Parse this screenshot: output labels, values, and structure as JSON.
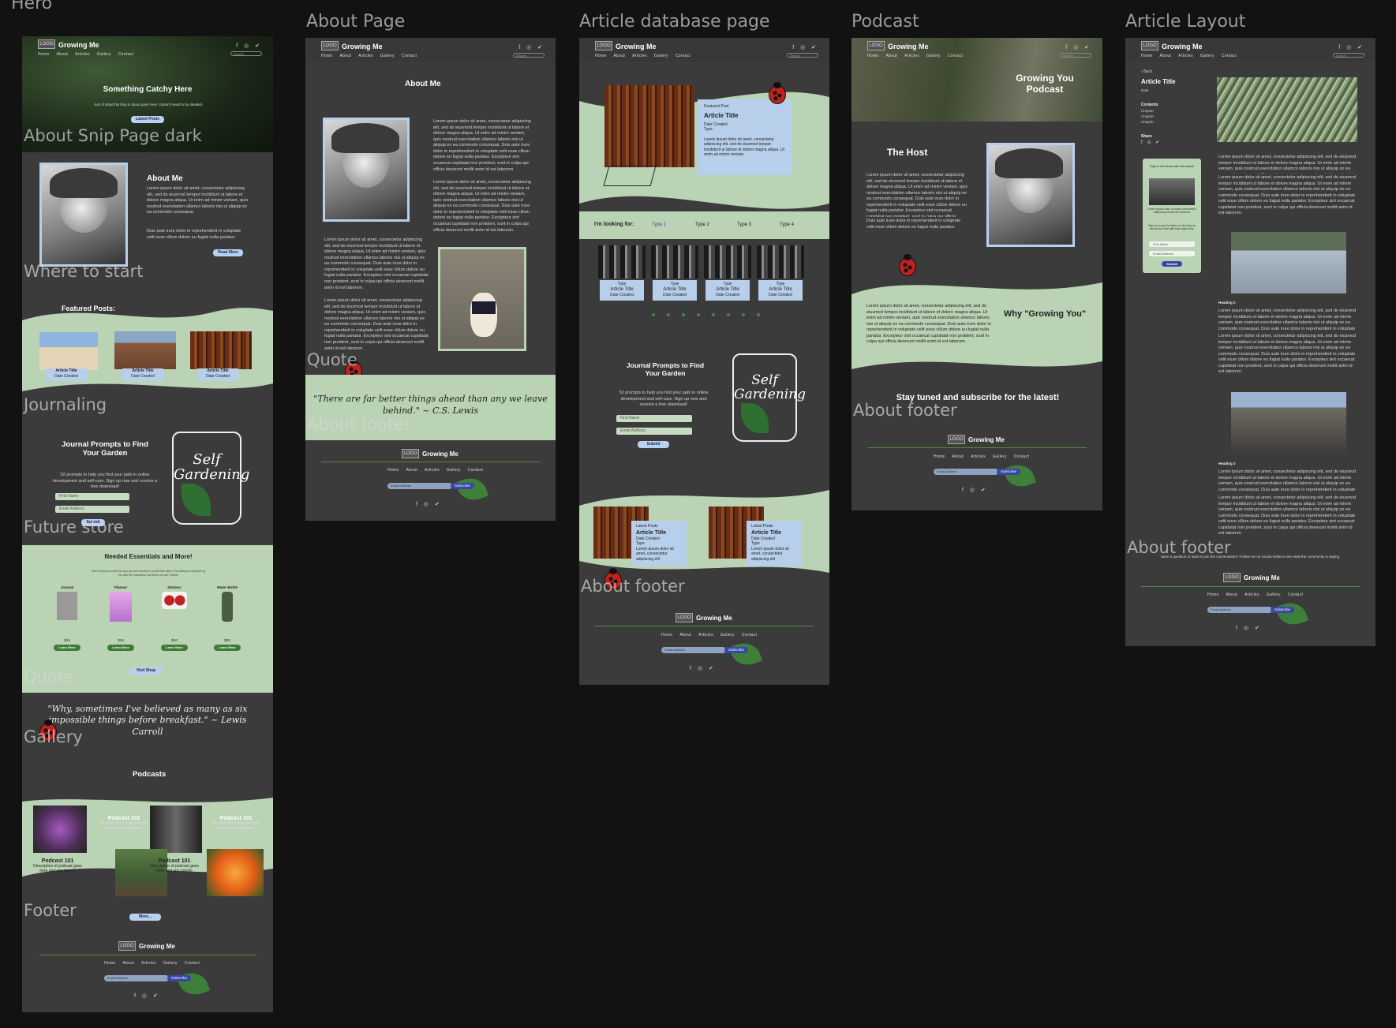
{
  "frames": {
    "hero": "Hero",
    "about": "About Page",
    "article_db": "Article database page",
    "podcast": "Podcast",
    "article_layout": "Article Layout"
  },
  "site": {
    "logo": "LOGO",
    "brand": "Growing Me",
    "nav": [
      "Home",
      "About",
      "Articles",
      "Gallery",
      "Contact"
    ],
    "social": "f ◎ ✔",
    "search": "Search"
  },
  "sections": {
    "about_snip": "About Snip Page dark",
    "where_start": "Where to start",
    "journaling": "Journaling",
    "future_store": "Future store",
    "quote": "Quote",
    "gallery": "Gallery",
    "footer": "Footer",
    "about_footer": "About footer"
  },
  "hero": {
    "title": "Something Catchy Here",
    "subtitle": "Just of what this blog is about goes here. Doesn't need to by detailed.",
    "button": "Latest Posts"
  },
  "about_me": {
    "title": "About Me",
    "text1": "Lorem ipsum dolor sit amet, consectetur adipiscing elit, sed do eiusmod tempor incididunt ut labore et dolore magna aliqua. Ut enim ad minim veniam, quis nostrud exercitation ullamco laboris nisi ut aliquip ex ea commodo consequat.",
    "text2": "Duis aute irure dolor in reprehenderit in voluptate velit esse cillum dolore eu fugiat nulla pariatur.",
    "button": "Read More"
  },
  "featured": {
    "title": "Featured Posts:",
    "cards": [
      {
        "title": "Article Title",
        "meta": "Date Created"
      },
      {
        "title": "Article Title",
        "meta": "Date Created"
      },
      {
        "title": "Article Title",
        "meta": "Date Created"
      }
    ]
  },
  "journal": {
    "title": "Journal Prompts to Find Your Garden",
    "text": "52 prompts to help you find your path in online development and self-care. Sign up now and receive a free download!",
    "first_name": "First Name",
    "email": "Email Address",
    "button": "Submit",
    "jar": "Self Gardening"
  },
  "store": {
    "title": "Needed Essentials and More!",
    "subtitle": "Here's what you need for your growth-needed in my life-Mini intern. Everything is designed by me with the inspiration that there you are. Heard!",
    "products": [
      {
        "name": "Journal",
        "price": "$15",
        "button": "Learn More"
      },
      {
        "name": "Planner",
        "price": "$15",
        "button": "Learn More"
      },
      {
        "name": "Stickers",
        "price": "$10",
        "button": "Learn More"
      },
      {
        "name": "Water Bottle",
        "price": "$20",
        "button": "Learn More"
      }
    ],
    "shop": "Visit Shop"
  },
  "quote1": {
    "text": "\"Why, sometimes I've believed as many as six impossible things before breakfast.\" ~ Lewis Carroll"
  },
  "podcasts": {
    "title": "Podcasts",
    "items": [
      {
        "title": "Podcast 101",
        "desc": "Description of podcast goes here and any guests"
      },
      {
        "title": "Podcast 101",
        "desc": "Description of podcast goes here and any guests"
      },
      {
        "title": "Podcast 101",
        "desc": "Description of podcast goes here and any guests"
      },
      {
        "title": "Podcast 101",
        "desc": "Description of podcast goes here and any guests"
      }
    ],
    "more": "More..."
  },
  "footer": {
    "email": "Email Address",
    "subscribe": "Subscribe"
  },
  "about_page": {
    "title": "About Me",
    "lorem": "Lorem ipsum dolor sit amet, consectetur adipiscing elit, sed do eiusmod tempor incididunt ut labore et dolore magna aliqua. Ut enim ad minim veniam, quis nostrud exercitation ullamco laboris nisi ut aliquip ex ea commodo consequat. Duis aute irure dolor in reprehenderit in voluptate velit esse cillum dolore eu fugiat nulla pariatur. Excepteur sint occaecat cupidatat non proident, sunt in culpa qui officia deserunt mollit anim id est laborum.",
    "quote": "\"There are far better things ahead than any we leave behind.\" ~ C.S. Lewis"
  },
  "article_db": {
    "featured_tag": "Featured Post",
    "featured_title": "Article Title",
    "featured_meta": "Date Created",
    "featured_type": "Type",
    "featured_text": "Lorem ipsum dolor sit amet, consectetur adipiscing elit, sed do eiusmod tempor incididunt ut labore et dolore magna aliqua. Ut enim ad minim veniam.",
    "filter_label": "I'm looking for:",
    "filters": [
      "Type 1",
      "Type 2",
      "Type 3",
      "Type 4"
    ],
    "grid": [
      {
        "type": "Type",
        "title": "Article Title",
        "meta": "Date Created"
      },
      {
        "type": "Type",
        "title": "Article Title",
        "meta": "Date Created"
      },
      {
        "type": "Type",
        "title": "Article Title",
        "meta": "Date Created"
      },
      {
        "type": "Type",
        "title": "Article Title",
        "meta": "Date Created"
      }
    ],
    "latest": [
      {
        "tag": "Latest Posts",
        "title": "Article Title",
        "meta": "Date Created",
        "type": "Type",
        "text": "Lorem ipsum dolor sit amet, consectetur adipiscing elit"
      },
      {
        "tag": "Latest Posts",
        "title": "Article Title",
        "meta": "Date Created",
        "type": "Type",
        "text": "Lorem ipsum dolor sit amet, consectetur adipiscing elit"
      }
    ]
  },
  "podcast_page": {
    "title": "Growing You Podcast",
    "host": "The Host",
    "why": "Why \"Growing You\"",
    "stay": "Stay tuned and subscribe for the latest!"
  },
  "article_layout": {
    "back": "Back",
    "title": "Article Title",
    "date": "Date",
    "contents": "Contents",
    "chapters": [
      "Chapter",
      "Chapter",
      "Chapter"
    ],
    "share": "Share",
    "side_title": "Stay in the know with the latest!",
    "side_text": "Lorem ipsum dolor sit amet consectetur adipiscing elit sed do eiusmod",
    "side_sign": "Sign up to get the latest on the blog as well as any free gifts that might drop.",
    "first_name": "First Name",
    "email": "Email Address",
    "submit": "Submit",
    "heading2": "Heading 2",
    "heading3": "Heading 3",
    "cta": "Have a question or want to join the conversation? Follow me on social media to see what the community is saying."
  },
  "colors": {
    "bg": "#121212",
    "frame": "#3b3b3b",
    "sage": "#b9d3b4",
    "card": "#b8cfeb",
    "accent": "#3f7a36",
    "button_blue": "#b9d1f0"
  }
}
